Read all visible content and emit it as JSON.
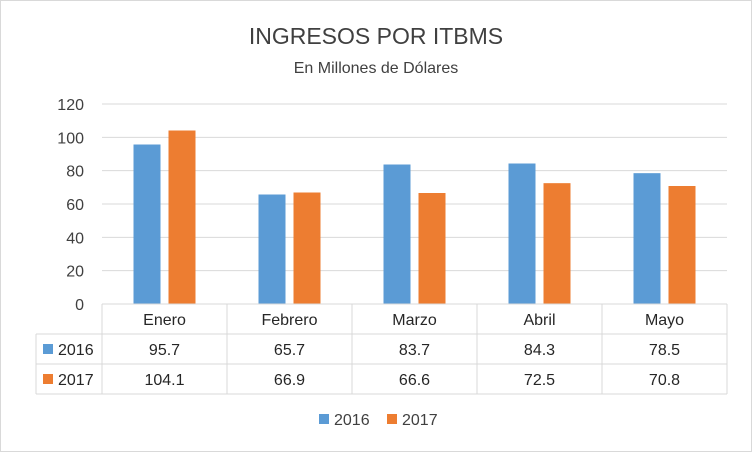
{
  "chart_data": {
    "type": "bar",
    "title": "INGRESOS POR ITBMS",
    "subtitle": "En Millones de Dólares",
    "categories": [
      "Enero",
      "Febrero",
      "Marzo",
      "Abril",
      "Mayo"
    ],
    "series": [
      {
        "name": "2016",
        "color": "#5b9bd5",
        "values": [
          95.7,
          65.7,
          83.7,
          84.3,
          78.5
        ]
      },
      {
        "name": "2017",
        "color": "#ed7d31",
        "values": [
          104.1,
          66.9,
          66.6,
          72.5,
          70.8
        ]
      }
    ],
    "ylim": [
      0,
      120
    ],
    "yticks": [
      "0",
      "20",
      "40",
      "60",
      "80",
      "100",
      "120"
    ],
    "grid": true,
    "data_table": true,
    "table_rows": [
      {
        "name": "2016",
        "cells": [
          "95.7",
          "65.7",
          "83.7",
          "84.3",
          "78.5"
        ]
      },
      {
        "name": "2017",
        "cells": [
          "104.1",
          "66.9",
          "66.6",
          "72.5",
          "70.8"
        ]
      }
    ],
    "legend": {
      "position": "bottom",
      "items": [
        "2016",
        "2017"
      ]
    }
  }
}
